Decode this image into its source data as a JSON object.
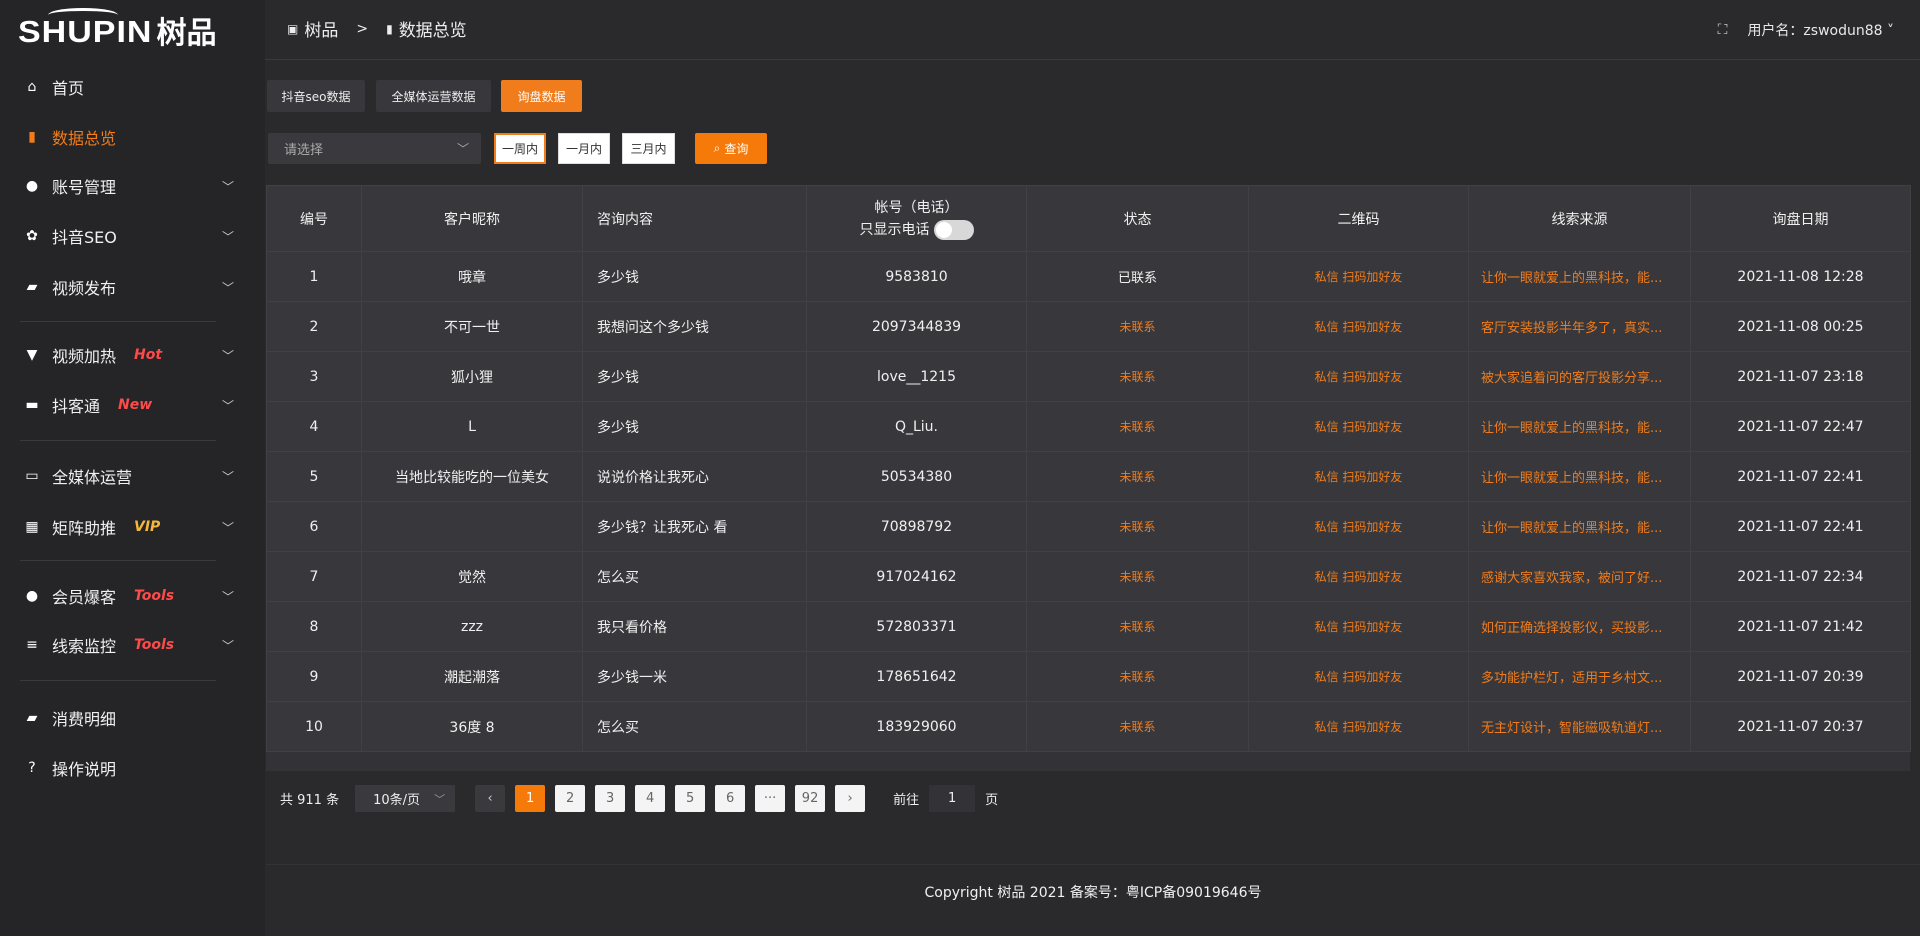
{
  "brand": {
    "logo_en": "SHUPIN",
    "logo_cn": "树品"
  },
  "colors": {
    "accent": "#f07c1b",
    "hot": "#ff4a4a",
    "vip": "#f5b73b"
  },
  "sidebar": {
    "items": [
      {
        "label": "首页",
        "icon": "home-icon"
      },
      {
        "label": "数据总览",
        "icon": "bar-chart-icon",
        "active": true
      },
      {
        "label": "账号管理",
        "icon": "user-icon"
      },
      {
        "label": "抖音SEO",
        "icon": "gear-icon"
      },
      {
        "label": "视频发布",
        "icon": "camera-icon"
      },
      {
        "label": "视频加热",
        "icon": "boost-icon",
        "badge": "Hot"
      },
      {
        "label": "抖客通",
        "icon": "chat-icon",
        "badge": "New"
      },
      {
        "label": "全媒体运营",
        "icon": "monitor-icon"
      },
      {
        "label": "矩阵助推",
        "icon": "grid-icon",
        "badge": "VIP"
      },
      {
        "label": "会员爆客",
        "icon": "member-icon",
        "badge": "Tools"
      },
      {
        "label": "线索监控",
        "icon": "sliders-icon",
        "badge": "Tools"
      },
      {
        "label": "消费明细",
        "icon": "wallet-icon"
      },
      {
        "label": "操作说明",
        "icon": "help-icon"
      }
    ]
  },
  "header": {
    "breadcrumb": [
      "树品",
      "数据总览"
    ],
    "user_label": "用户名：zswodun88"
  },
  "tabs": [
    "抖音seo数据",
    "全媒体运营数据",
    "询盘数据"
  ],
  "filters": {
    "select_placeholder": "请选择",
    "ranges": [
      "一周内",
      "一月内",
      "三月内"
    ],
    "query": "查询"
  },
  "table": {
    "headers": [
      "编号",
      "客户昵称",
      "咨询内容",
      "帐号（电话）",
      "状态",
      "二维码",
      "线索来源",
      "询盘日期"
    ],
    "toggle_label": "只显示电话",
    "rows": [
      [
        "1",
        "哦章",
        "多少钱",
        "9583810",
        "已联系",
        "私信 扫码加好友",
        "让你一眼就爱上的黑科技，能...",
        "2021-11-08 12:28"
      ],
      [
        "2",
        "不可一世",
        "我想问这个多少钱",
        "2097344839",
        "未联系",
        "私信 扫码加好友",
        "客厅安装投影半年多了，真实...",
        "2021-11-08 00:25"
      ],
      [
        "3",
        "狐小狸",
        "多少钱",
        "love__1215",
        "未联系",
        "私信 扫码加好友",
        "被大家追着问的客厅投影分享...",
        "2021-11-07 23:18"
      ],
      [
        "4",
        "L",
        "多少钱",
        "Q_Liu.",
        "未联系",
        "私信 扫码加好友",
        "让你一眼就爱上的黑科技，能...",
        "2021-11-07 22:47"
      ],
      [
        "5",
        "当地比较能吃的一位美女",
        "说说价格让我死心",
        "50534380",
        "未联系",
        "私信 扫码加好友",
        "让你一眼就爱上的黑科技，能...",
        "2021-11-07 22:41"
      ],
      [
        "6",
        "",
        "多少钱？让我死心 看",
        "70898792",
        "未联系",
        "私信 扫码加好友",
        "让你一眼就爱上的黑科技，能...",
        "2021-11-07 22:41"
      ],
      [
        "7",
        "觉然",
        "怎么买",
        "917024162",
        "未联系",
        "私信 扫码加好友",
        "感谢大家喜欢我家，被问了好...",
        "2021-11-07 22:34"
      ],
      [
        "8",
        "zzz",
        "我只看价格",
        "572803371",
        "未联系",
        "私信 扫码加好友",
        "如何正确选择投影仪，买投影...",
        "2021-11-07 21:42"
      ],
      [
        "9",
        "潮起潮落",
        "多少钱一米",
        "178651642",
        "未联系",
        "私信 扫码加好友",
        "多功能护栏灯，适用于乡村文...",
        "2021-11-07 20:39"
      ],
      [
        "10",
        "36度 8",
        "怎么买",
        "183929060",
        "未联系",
        "私信 扫码加好友",
        "无主灯设计，智能磁吸轨道灯...",
        "2021-11-07 20:37"
      ]
    ]
  },
  "pagination": {
    "total": "共 911 条",
    "page_size": "10条/页",
    "pages": [
      "1",
      "2",
      "3",
      "4",
      "5",
      "6",
      "···",
      "92"
    ],
    "current": "1",
    "goto_label": "前往",
    "goto_value": "1",
    "page_suffix": "页"
  },
  "footer": "Copyright 树品 2021 备案号：粤ICP备09019646号"
}
